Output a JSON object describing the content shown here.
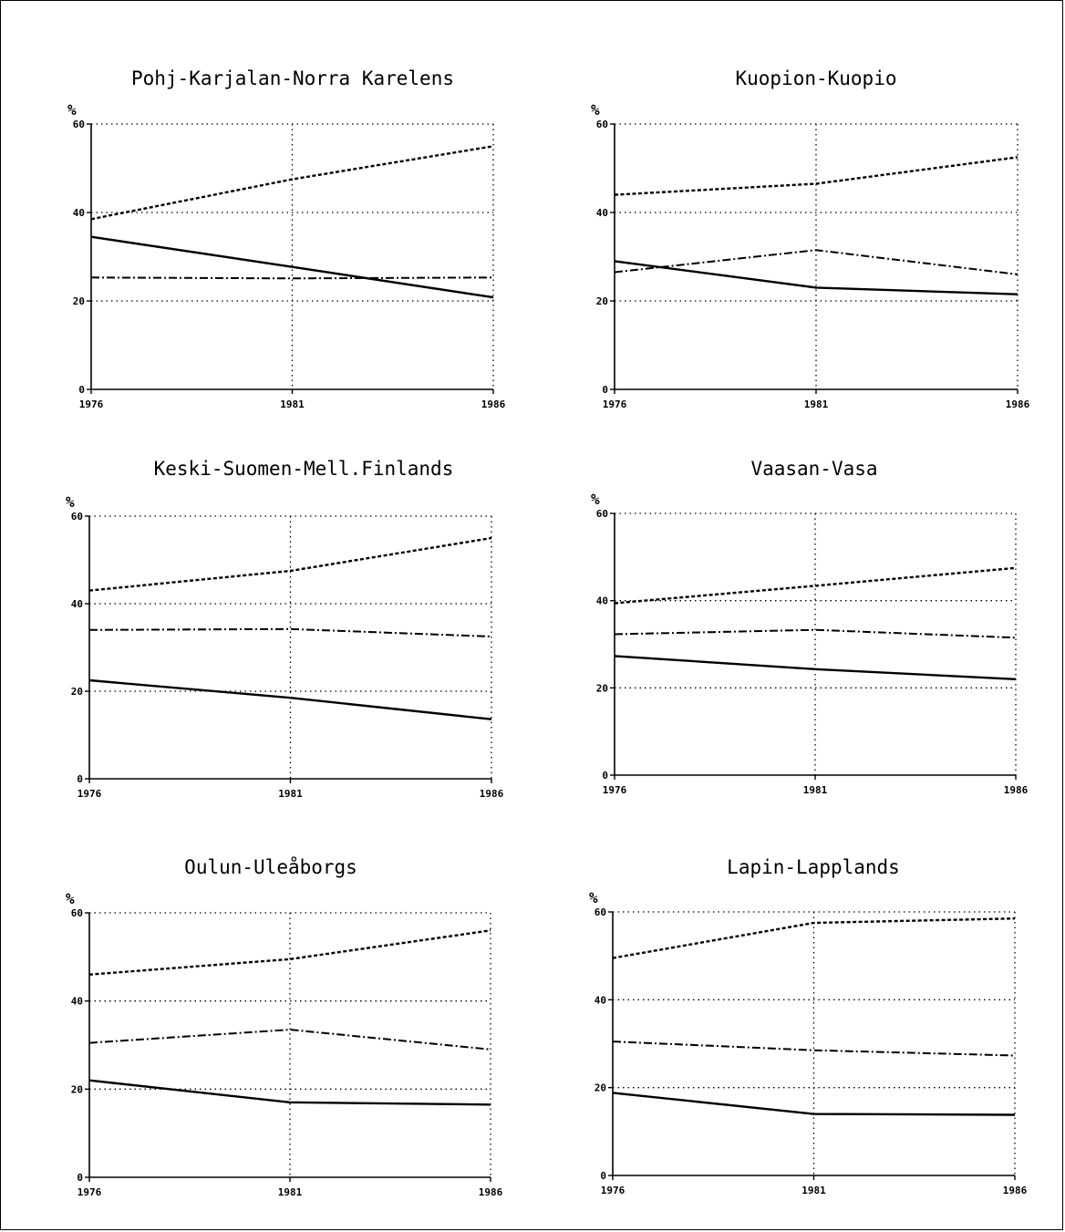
{
  "chart_data": [
    {
      "type": "line",
      "title": "Pohj-Karjalan-Norra Karelens",
      "ylabel": "%",
      "x": [
        1976,
        1981,
        1986
      ],
      "xticks": [
        "1976",
        "1981",
        "1986"
      ],
      "yticks": [
        "0",
        "20",
        "40",
        "60"
      ],
      "ylim": [
        0,
        60
      ],
      "grid": true,
      "series": [
        {
          "style": "solid",
          "values": [
            34.5,
            27.7,
            20.8
          ]
        },
        {
          "style": "dash-dot",
          "values": [
            25.3,
            25.1,
            25.3
          ]
        },
        {
          "style": "dashed",
          "values": [
            38.5,
            47.5,
            55.0
          ]
        }
      ]
    },
    {
      "type": "line",
      "title": "Kuopion-Kuopio",
      "ylabel": "%",
      "x": [
        1976,
        1981,
        1986
      ],
      "xticks": [
        "1976",
        "1981",
        "1986"
      ],
      "yticks": [
        "0",
        "20",
        "40",
        "60"
      ],
      "ylim": [
        0,
        60
      ],
      "grid": true,
      "series": [
        {
          "style": "solid",
          "values": [
            29.0,
            23.0,
            21.5
          ]
        },
        {
          "style": "dash-dot",
          "values": [
            26.5,
            31.5,
            26.0
          ]
        },
        {
          "style": "dashed",
          "values": [
            44.0,
            46.5,
            52.5
          ]
        }
      ]
    },
    {
      "type": "line",
      "title": "Keski-Suomen-Mell.Finlands",
      "ylabel": "%",
      "x": [
        1976,
        1981,
        1986
      ],
      "xticks": [
        "1976",
        "1981",
        "1986"
      ],
      "yticks": [
        "0",
        "20",
        "40",
        "60"
      ],
      "ylim": [
        0,
        60
      ],
      "grid": true,
      "series": [
        {
          "style": "solid",
          "values": [
            22.5,
            18.5,
            13.6
          ]
        },
        {
          "style": "dash-dot",
          "values": [
            34.0,
            34.2,
            32.5
          ]
        },
        {
          "style": "dashed",
          "values": [
            43.0,
            47.5,
            55.0
          ]
        }
      ]
    },
    {
      "type": "line",
      "title": "Vaasan-Vasa",
      "ylabel": "%",
      "x": [
        1976,
        1981,
        1986
      ],
      "xticks": [
        "1976",
        "1981",
        "1986"
      ],
      "yticks": [
        "0",
        "20",
        "40",
        "60"
      ],
      "ylim": [
        0,
        60
      ],
      "grid": true,
      "series": [
        {
          "style": "solid",
          "values": [
            27.3,
            24.3,
            22.0
          ]
        },
        {
          "style": "dash-dot",
          "values": [
            32.3,
            33.3,
            31.5
          ]
        },
        {
          "style": "dashed",
          "values": [
            39.4,
            43.4,
            47.5
          ]
        }
      ]
    },
    {
      "type": "line",
      "title": "Oulun-Uleåborgs",
      "ylabel": "%",
      "x": [
        1976,
        1981,
        1986
      ],
      "xticks": [
        "1976",
        "1981",
        "1986"
      ],
      "yticks": [
        "0",
        "20",
        "40",
        "60"
      ],
      "ylim": [
        0,
        60
      ],
      "grid": true,
      "series": [
        {
          "style": "solid",
          "values": [
            22.0,
            17.0,
            16.5
          ]
        },
        {
          "style": "dash-dot",
          "values": [
            30.5,
            33.5,
            29.0
          ]
        },
        {
          "style": "dashed",
          "values": [
            46.0,
            49.5,
            56.0
          ]
        }
      ]
    },
    {
      "type": "line",
      "title": "Lapin-Lapplands",
      "ylabel": "%",
      "x": [
        1976,
        1981,
        1986
      ],
      "xticks": [
        "1976",
        "1981",
        "1986"
      ],
      "yticks": [
        "0",
        "20",
        "40",
        "60"
      ],
      "ylim": [
        0,
        60
      ],
      "grid": true,
      "series": [
        {
          "style": "solid",
          "values": [
            18.8,
            14.0,
            13.8
          ]
        },
        {
          "style": "dash-dot",
          "values": [
            30.5,
            28.5,
            27.3
          ]
        },
        {
          "style": "dashed",
          "values": [
            49.5,
            57.5,
            58.5
          ]
        }
      ]
    }
  ]
}
